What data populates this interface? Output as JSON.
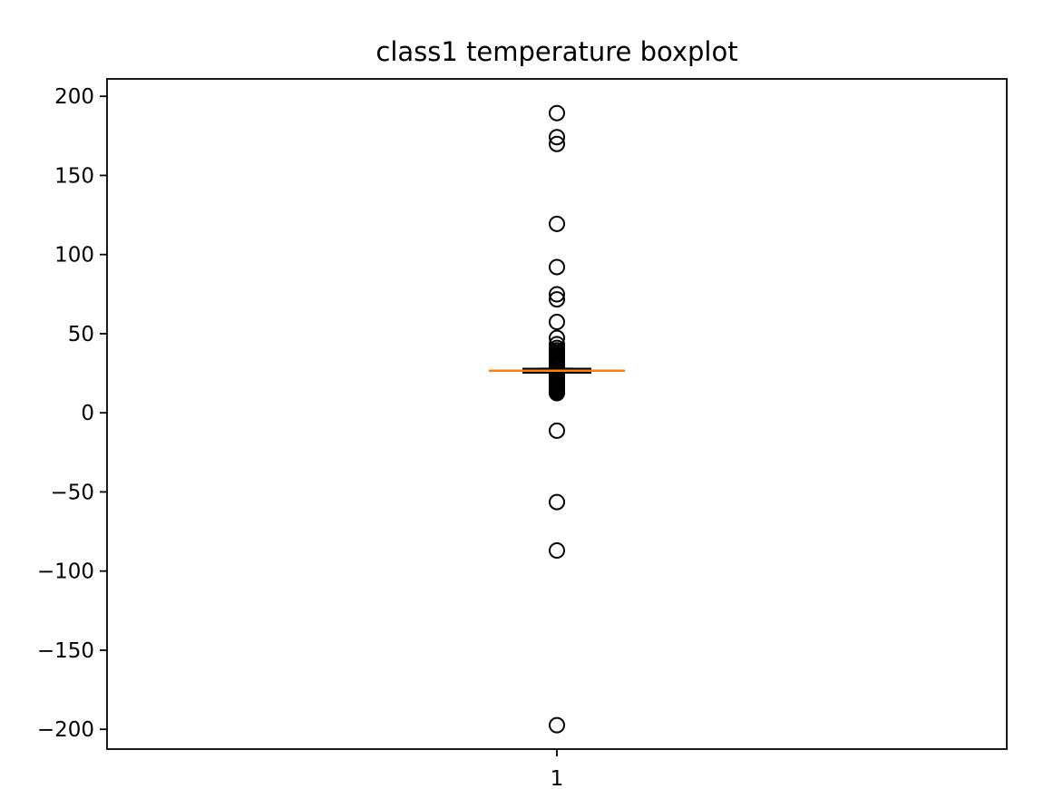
{
  "chart_data": {
    "type": "boxplot",
    "title": "class1 temperature boxplot",
    "xlabel": "",
    "ylabel": "",
    "categories": [
      "1"
    ],
    "ylim": [
      -212.5,
      211
    ],
    "yticks": [
      200,
      150,
      100,
      50,
      0,
      -50,
      -100,
      -150,
      -200
    ],
    "ytick_labels": [
      "200",
      "150",
      "100",
      "50",
      "0",
      "−50",
      "−100",
      "−150",
      "−200"
    ],
    "grid": false,
    "box": {
      "q1": 25.3,
      "median": 26.6,
      "q3": 27.9,
      "whisker_low": 25.3,
      "whisker_high": 28.0
    },
    "fliers": [
      189.4,
      174.2,
      169.9,
      119.4,
      92.1,
      74.9,
      71.7,
      57.4,
      47.3,
      43.4,
      41.0,
      39.5,
      38.2,
      37.1,
      36.0,
      35.0,
      34.1,
      33.2,
      32.4,
      31.6,
      30.8,
      30.0,
      29.3,
      28.7,
      24.7,
      24.0,
      23.3,
      22.6,
      21.9,
      21.2,
      20.5,
      19.8,
      19.1,
      18.4,
      17.7,
      17.0,
      16.3,
      15.6,
      14.9,
      14.2,
      13.5,
      12.9,
      12.4,
      -11.3,
      -56.4,
      -87.0,
      -197.4
    ],
    "colors": {
      "box": "#000000",
      "median": "#ff7f0e",
      "flier_edge": "#000000"
    }
  }
}
